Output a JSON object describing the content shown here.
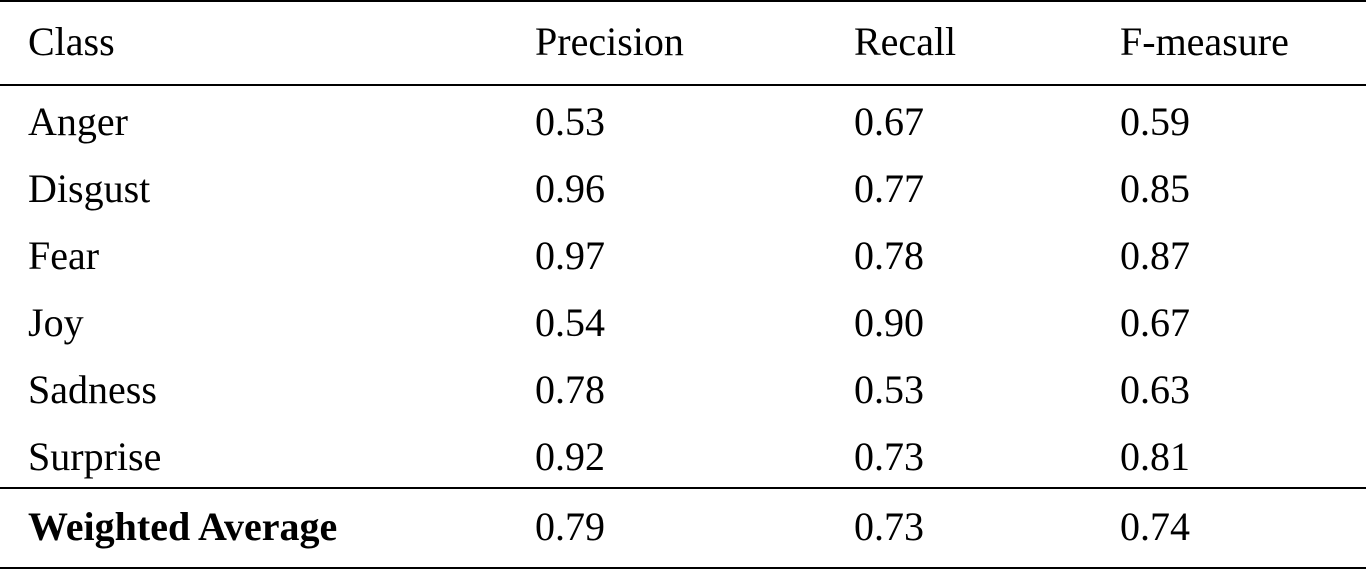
{
  "table": {
    "headers": [
      "Class",
      "Precision",
      "Recall",
      "F-measure"
    ],
    "rows": [
      [
        "Anger",
        "0.53",
        "0.67",
        "0.59"
      ],
      [
        "Disgust",
        "0.96",
        "0.77",
        "0.85"
      ],
      [
        "Fear",
        "0.97",
        "0.78",
        "0.87"
      ],
      [
        "Joy",
        "0.54",
        "0.90",
        "0.67"
      ],
      [
        "Sadness",
        "0.78",
        "0.53",
        "0.63"
      ],
      [
        "Surprise",
        "0.92",
        "0.73",
        "0.81"
      ]
    ],
    "footer": [
      "Weighted Average",
      "0.79",
      "0.73",
      "0.74"
    ]
  }
}
